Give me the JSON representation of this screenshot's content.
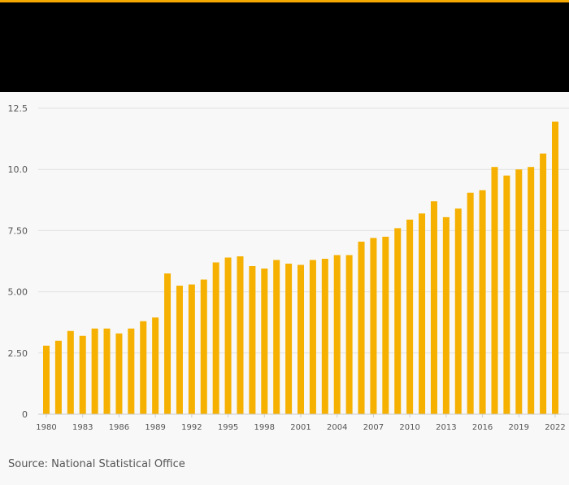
{
  "colors": {
    "accent": "#f5a800",
    "bar": "#f5b000",
    "header_bg": "#000000",
    "background": "#f8f8f8",
    "grid": "#e0e0e0",
    "tick_text": "#555555"
  },
  "source": {
    "text": "Source: National Statistical Office"
  },
  "chart_data": {
    "type": "bar",
    "title": "",
    "xlabel": "",
    "ylabel": "",
    "ylim": [
      0,
      12.5
    ],
    "yticks": [
      0,
      2.5,
      5,
      7.5,
      10,
      12.5
    ],
    "ytick_labels": [
      "0",
      "2.50",
      "5.00",
      "7.50",
      "10.0",
      "12.5"
    ],
    "categories": [
      "1980",
      "1981",
      "1982",
      "1983",
      "1984",
      "1985",
      "1986",
      "1987",
      "1988",
      "1989",
      "1990",
      "1991",
      "1992",
      "1993",
      "1994",
      "1995",
      "1996",
      "1997",
      "1998",
      "1999",
      "2000",
      "2001",
      "2002",
      "2003",
      "2004",
      "2005",
      "2006",
      "2007",
      "2008",
      "2009",
      "2010",
      "2011",
      "2012",
      "2013",
      "2014",
      "2015",
      "2016",
      "2017",
      "2018",
      "2019",
      "2020",
      "2021",
      "2022"
    ],
    "values": [
      2.8,
      3.0,
      3.4,
      3.2,
      3.5,
      3.5,
      3.3,
      3.5,
      3.8,
      3.95,
      5.75,
      5.25,
      5.3,
      5.5,
      6.2,
      6.4,
      6.45,
      6.05,
      5.95,
      6.3,
      6.15,
      6.1,
      6.3,
      6.35,
      6.5,
      6.5,
      7.05,
      7.2,
      7.25,
      7.6,
      7.95,
      8.2,
      8.7,
      8.05,
      8.4,
      9.05,
      9.15,
      10.1,
      9.75,
      10.0,
      10.1,
      10.65,
      11.95
    ],
    "xtick_labels": [
      "1980",
      "1983",
      "1986",
      "1989",
      "1992",
      "1995",
      "1998",
      "2001",
      "2004",
      "2007",
      "2010",
      "2013",
      "2016",
      "2019",
      "2022"
    ],
    "grid": true
  }
}
